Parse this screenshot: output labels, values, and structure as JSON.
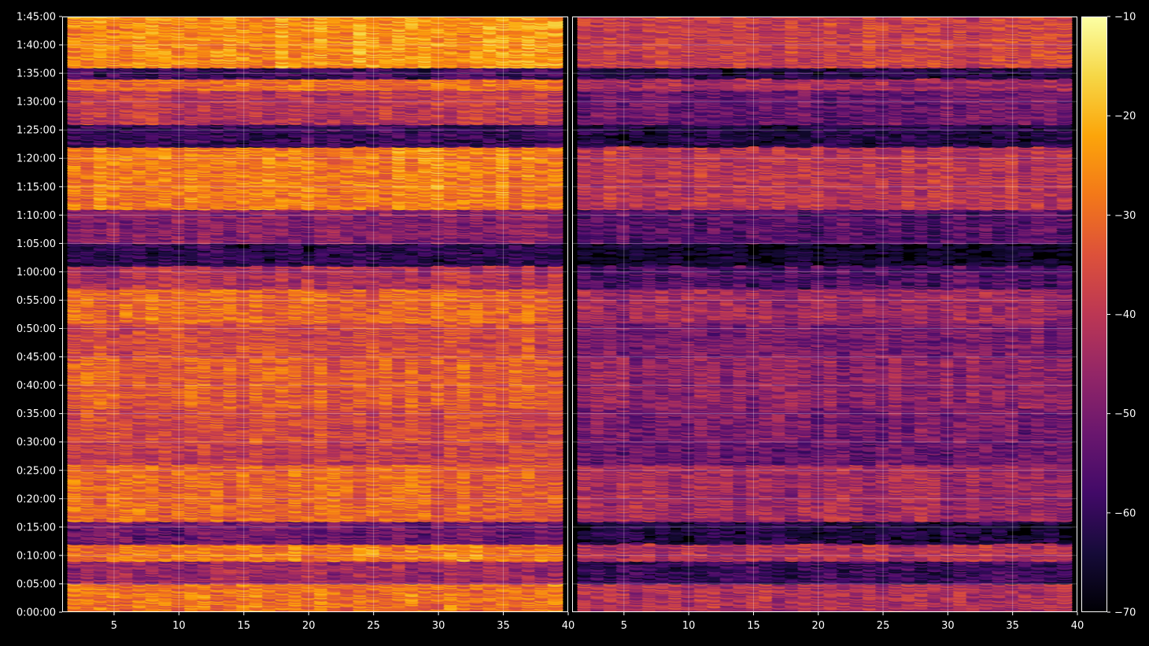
{
  "chart_data": {
    "type": "heatmap",
    "title": "",
    "colormap": "inferno",
    "background": "#000000",
    "grid": true,
    "marker": "ellipse",
    "y_tick_labels": [
      "0:00:00",
      "0:05:00",
      "0:10:00",
      "0:15:00",
      "0:20:00",
      "0:25:00",
      "0:30:00",
      "0:35:00",
      "0:40:00",
      "0:45:00",
      "0:50:00",
      "0:55:00",
      "1:00:00",
      "1:05:00",
      "1:10:00",
      "1:15:00",
      "1:20:00",
      "1:25:00",
      "1:30:00",
      "1:35:00",
      "1:40:00",
      "1:45:00"
    ],
    "y_ticks_seconds": [
      0,
      300,
      600,
      900,
      1200,
      1500,
      1800,
      2100,
      2400,
      2700,
      3000,
      3300,
      3600,
      3900,
      4200,
      4500,
      4800,
      5100,
      5400,
      5700,
      6000,
      6300
    ],
    "ylim_seconds": [
      0,
      6300
    ],
    "panels": [
      {
        "name": "left",
        "xlim": [
          1,
          40
        ],
        "x_ticks": [
          5,
          10,
          15,
          20,
          25,
          30,
          35,
          40
        ],
        "x_tick_labels": [
          "5",
          "10",
          "15",
          "20",
          "25",
          "30",
          "35",
          "40"
        ],
        "x_columns": [
          2,
          3,
          4,
          5,
          6,
          7,
          8,
          9,
          10,
          11,
          12,
          13,
          14,
          15,
          16,
          17,
          18,
          19,
          20,
          21,
          22,
          23,
          24,
          25,
          26,
          27,
          28,
          29,
          30,
          31,
          32,
          33,
          34,
          35,
          36,
          37,
          38,
          39
        ],
        "bands": [
          {
            "t0": 0,
            "t1": 300,
            "level": -29
          },
          {
            "t0": 300,
            "t1": 540,
            "level": -45
          },
          {
            "t0": 540,
            "t1": 720,
            "level": -28
          },
          {
            "t0": 720,
            "t1": 960,
            "level": -52
          },
          {
            "t0": 960,
            "t1": 1560,
            "level": -31
          },
          {
            "t0": 1560,
            "t1": 1800,
            "level": -38
          },
          {
            "t0": 1800,
            "t1": 2160,
            "level": -36
          },
          {
            "t0": 2160,
            "t1": 2700,
            "level": -33
          },
          {
            "t0": 2700,
            "t1": 3060,
            "level": -36
          },
          {
            "t0": 3060,
            "t1": 3420,
            "level": -31
          },
          {
            "t0": 3420,
            "t1": 3660,
            "level": -42
          },
          {
            "t0": 3660,
            "t1": 3900,
            "level": -62
          },
          {
            "t0": 3900,
            "t1": 4260,
            "level": -48
          },
          {
            "t0": 4260,
            "t1": 4920,
            "level": -27
          },
          {
            "t0": 4920,
            "t1": 5160,
            "level": -60
          },
          {
            "t0": 5160,
            "t1": 5520,
            "level": -40
          },
          {
            "t0": 5520,
            "t1": 5640,
            "level": -30
          },
          {
            "t0": 5640,
            "t1": 5760,
            "level": -58
          },
          {
            "t0": 5760,
            "t1": 6300,
            "level": -25
          }
        ]
      },
      {
        "name": "right",
        "xlim": [
          1,
          40
        ],
        "x_ticks": [
          5,
          10,
          15,
          20,
          25,
          30,
          35,
          40
        ],
        "x_tick_labels": [
          "5",
          "10",
          "15",
          "20",
          "25",
          "30",
          "35",
          "40"
        ],
        "x_columns": [
          2,
          3,
          4,
          5,
          6,
          7,
          8,
          9,
          10,
          11,
          12,
          13,
          14,
          15,
          16,
          17,
          18,
          19,
          20,
          21,
          22,
          23,
          24,
          25,
          26,
          27,
          28,
          29,
          30,
          31,
          32,
          33,
          34,
          35,
          36,
          37,
          38,
          39
        ],
        "bands": [
          {
            "t0": 0,
            "t1": 300,
            "level": -42
          },
          {
            "t0": 300,
            "t1": 540,
            "level": -60
          },
          {
            "t0": 540,
            "t1": 720,
            "level": -42
          },
          {
            "t0": 720,
            "t1": 960,
            "level": -65
          },
          {
            "t0": 960,
            "t1": 1560,
            "level": -44
          },
          {
            "t0": 1560,
            "t1": 1800,
            "level": -52
          },
          {
            "t0": 1800,
            "t1": 2160,
            "level": -50
          },
          {
            "t0": 2160,
            "t1": 2700,
            "level": -47
          },
          {
            "t0": 2700,
            "t1": 3060,
            "level": -50
          },
          {
            "t0": 3060,
            "t1": 3420,
            "level": -45
          },
          {
            "t0": 3420,
            "t1": 3660,
            "level": -56
          },
          {
            "t0": 3660,
            "t1": 3900,
            "level": -68
          },
          {
            "t0": 3900,
            "t1": 4260,
            "level": -55
          },
          {
            "t0": 4260,
            "t1": 4920,
            "level": -40
          },
          {
            "t0": 4920,
            "t1": 5160,
            "level": -64
          },
          {
            "t0": 5160,
            "t1": 5520,
            "level": -52
          },
          {
            "t0": 5520,
            "t1": 5640,
            "level": -44
          },
          {
            "t0": 5640,
            "t1": 5760,
            "level": -64
          },
          {
            "t0": 5760,
            "t1": 6300,
            "level": -38
          }
        ]
      }
    ],
    "colorbar": {
      "vmin": -70,
      "vmax": -10,
      "ticks": [
        -10,
        -20,
        -30,
        -40,
        -50,
        -60,
        -70
      ],
      "tick_labels": [
        "−10",
        "−20",
        "−30",
        "−40",
        "−50",
        "−60",
        "−70"
      ]
    }
  }
}
